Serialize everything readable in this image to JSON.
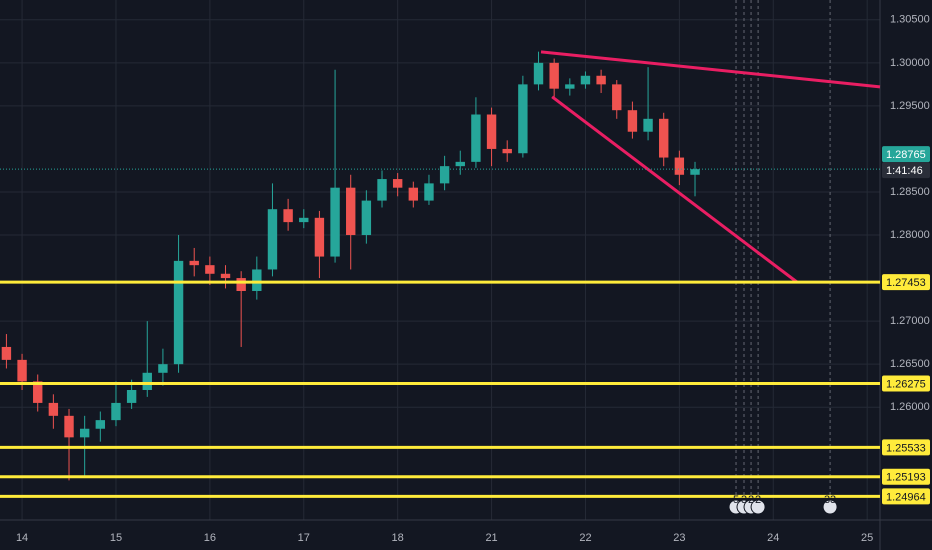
{
  "chart_data": {
    "type": "candlestick",
    "background": "#131722",
    "grid_color": "#252a36",
    "up_color": "#26a69a",
    "down_color": "#ef5350",
    "xlim": [
      -1.41,
      54.82
    ],
    "ylim": [
      1.2469,
      1.3073
    ],
    "xticks": [
      {
        "value": 0,
        "label": "14"
      },
      {
        "value": 6,
        "label": "15"
      },
      {
        "value": 12,
        "label": "16"
      },
      {
        "value": 18,
        "label": "17"
      },
      {
        "value": 24,
        "label": "18"
      },
      {
        "value": 30,
        "label": "21"
      },
      {
        "value": 36,
        "label": "22"
      },
      {
        "value": 42,
        "label": "23"
      },
      {
        "value": 48,
        "label": "24"
      },
      {
        "value": 54,
        "label": "25"
      }
    ],
    "yticks": [
      {
        "value": 1.305,
        "label": "1.30500"
      },
      {
        "value": 1.3,
        "label": "1.30000"
      },
      {
        "value": 1.295,
        "label": "1.29500"
      },
      {
        "value": 1.285,
        "label": "1.28500"
      },
      {
        "value": 1.28,
        "label": "1.28000"
      },
      {
        "value": 1.27,
        "label": "1.27000"
      },
      {
        "value": 1.265,
        "label": "1.26500"
      },
      {
        "value": 1.26,
        "label": "1.26000"
      }
    ],
    "x": [
      -1,
      0,
      1,
      2,
      3,
      4,
      5,
      6,
      7,
      8,
      9,
      10,
      11,
      12,
      13,
      14,
      15,
      16,
      17,
      18,
      19,
      20,
      21,
      22,
      23,
      24,
      25,
      26,
      27,
      28,
      29,
      30,
      31,
      32,
      33,
      34,
      35,
      36,
      37,
      38,
      39,
      40,
      41,
      42,
      43
    ],
    "open": [
      1.267,
      1.2655,
      1.263,
      1.2605,
      1.259,
      1.2565,
      1.2575,
      1.2585,
      1.2605,
      1.262,
      1.264,
      1.265,
      1.277,
      1.2765,
      1.2755,
      1.275,
      1.2735,
      1.276,
      1.283,
      1.2815,
      1.282,
      1.2775,
      1.2855,
      1.28,
      1.284,
      1.2865,
      1.2855,
      1.284,
      1.286,
      1.288,
      1.2885,
      1.294,
      1.29,
      1.2895,
      1.2975,
      1.3,
      1.297,
      1.2975,
      1.2985,
      1.2975,
      1.2945,
      1.292,
      1.2935,
      1.289,
      1.287
    ],
    "high": [
      1.2685,
      1.2662,
      1.2638,
      1.2615,
      1.2598,
      1.259,
      1.2595,
      1.263,
      1.2632,
      1.27,
      1.2668,
      1.28,
      1.2785,
      1.2775,
      1.2765,
      1.2758,
      1.2775,
      1.286,
      1.2842,
      1.283,
      1.2828,
      1.2992,
      1.287,
      1.2852,
      1.2875,
      1.2872,
      1.2862,
      1.287,
      1.2892,
      1.2898,
      1.296,
      1.2948,
      1.291,
      1.2985,
      1.3013,
      1.3005,
      1.2982,
      1.299,
      1.2992,
      1.298,
      1.2955,
      1.2995,
      1.2942,
      1.2898,
      1.2885
    ],
    "low": [
      1.2645,
      1.262,
      1.2595,
      1.2575,
      1.2515,
      1.252,
      1.256,
      1.2578,
      1.2598,
      1.2612,
      1.2625,
      1.264,
      1.2752,
      1.2742,
      1.2738,
      1.267,
      1.2725,
      1.2752,
      1.2805,
      1.2808,
      1.275,
      1.2768,
      1.276,
      1.279,
      1.2832,
      1.2845,
      1.2832,
      1.2835,
      1.2852,
      1.287,
      1.2878,
      1.288,
      1.2885,
      1.289,
      1.2968,
      1.296,
      1.2962,
      1.297,
      1.2965,
      1.2935,
      1.2912,
      1.291,
      1.288,
      1.2858,
      1.2845
    ],
    "close": [
      1.2655,
      1.263,
      1.2605,
      1.259,
      1.2565,
      1.2575,
      1.2585,
      1.2605,
      1.262,
      1.264,
      1.265,
      1.277,
      1.2765,
      1.2755,
      1.275,
      1.2735,
      1.276,
      1.283,
      1.2815,
      1.282,
      1.2775,
      1.2855,
      1.28,
      1.284,
      1.2865,
      1.2855,
      1.284,
      1.286,
      1.288,
      1.2885,
      1.294,
      1.29,
      1.2895,
      1.2975,
      1.3,
      1.297,
      1.2975,
      1.2985,
      1.2975,
      1.2945,
      1.292,
      1.2935,
      1.289,
      1.287,
      1.28765
    ],
    "levels": [
      {
        "value": 1.27453,
        "color": "#ffeb3b"
      },
      {
        "value": 1.26275,
        "color": "#ffeb3b"
      },
      {
        "value": 1.25533,
        "color": "#ffeb3b"
      },
      {
        "value": 1.25193,
        "color": "#ffeb3b"
      },
      {
        "value": 1.24964,
        "color": "#ffeb3b"
      }
    ],
    "last_price": {
      "value": 1.28765,
      "color": "#26a69a",
      "countdown": "1:41:46"
    },
    "trendlines": [
      {
        "color": "#e91e63",
        "x": [
          33.16,
          54.82
        ],
        "y": [
          1.30128,
          1.29721
        ]
      },
      {
        "color": "#e91e63",
        "x": [
          33.87,
          49.52
        ],
        "y": [
          1.29605,
          1.27453
        ]
      }
    ],
    "events": [
      {
        "x": 45.62,
        "label": "5"
      },
      {
        "x": 46.13,
        "label": "3"
      },
      {
        "x": 46.58,
        "label": "2"
      },
      {
        "x": 47.03,
        "label": "2"
      },
      {
        "x": 51.63,
        "label": "33"
      }
    ]
  }
}
